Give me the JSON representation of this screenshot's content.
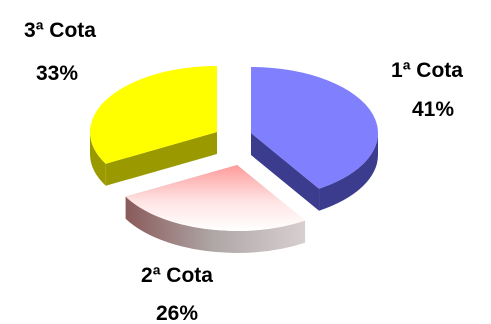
{
  "chart_data": {
    "type": "pie",
    "title": "",
    "categories": [
      "1ª Cota",
      "2ª Cota",
      "3ª Cota"
    ],
    "values": [
      41,
      26,
      33
    ],
    "value_labels": [
      "41%",
      "26%",
      "33%"
    ],
    "three_d": true,
    "exploded": true,
    "colors": {
      "1ª Cota": "#8080ff",
      "2ª Cota": "#ff9a9a",
      "3ª Cota": "#ffff00"
    }
  }
}
